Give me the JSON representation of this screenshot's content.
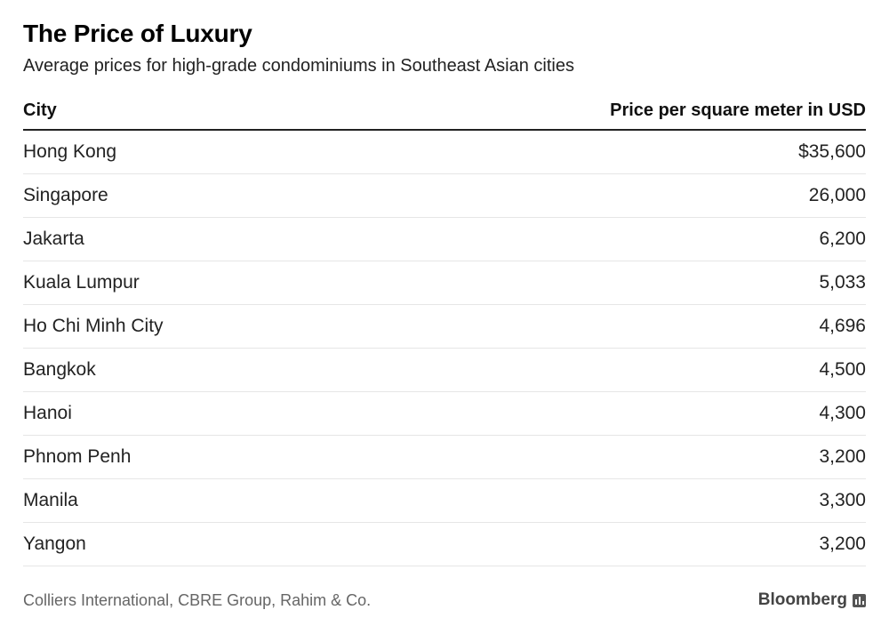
{
  "title": "The Price of Luxury",
  "subtitle": "Average prices for high-grade condominiums in Southeast Asian cities",
  "table": {
    "col_city": "City",
    "col_price": "Price per square meter in USD",
    "rows": [
      {
        "city": "Hong Kong",
        "price": "$35,600"
      },
      {
        "city": "Singapore",
        "price": "26,000"
      },
      {
        "city": "Jakarta",
        "price": "6,200"
      },
      {
        "city": "Kuala Lumpur",
        "price": "5,033"
      },
      {
        "city": "Ho Chi Minh City",
        "price": "4,696"
      },
      {
        "city": "Bangkok",
        "price": "4,500"
      },
      {
        "city": "Hanoi",
        "price": "4,300"
      },
      {
        "city": "Phnom Penh",
        "price": "3,200"
      },
      {
        "city": "Manila",
        "price": "3,300"
      },
      {
        "city": "Yangon",
        "price": "3,200"
      }
    ]
  },
  "footer": {
    "source": "Colliers International, CBRE Group, Rahim & Co.",
    "brand": "Bloomberg",
    "brand_icon": "bloomberg-bars-icon"
  },
  "chart_data": {
    "type": "table",
    "title": "The Price of Luxury",
    "subtitle": "Average prices for high-grade condominiums in Southeast Asian cities",
    "columns": [
      "City",
      "Price per square meter in USD"
    ],
    "categories": [
      "Hong Kong",
      "Singapore",
      "Jakarta",
      "Kuala Lumpur",
      "Ho Chi Minh City",
      "Bangkok",
      "Hanoi",
      "Phnom Penh",
      "Manila",
      "Yangon"
    ],
    "values": [
      35600,
      26000,
      6200,
      5033,
      4696,
      4500,
      4300,
      3200,
      3300,
      3200
    ],
    "unit": "USD per square meter",
    "source": "Colliers International, CBRE Group, Rahim & Co."
  }
}
